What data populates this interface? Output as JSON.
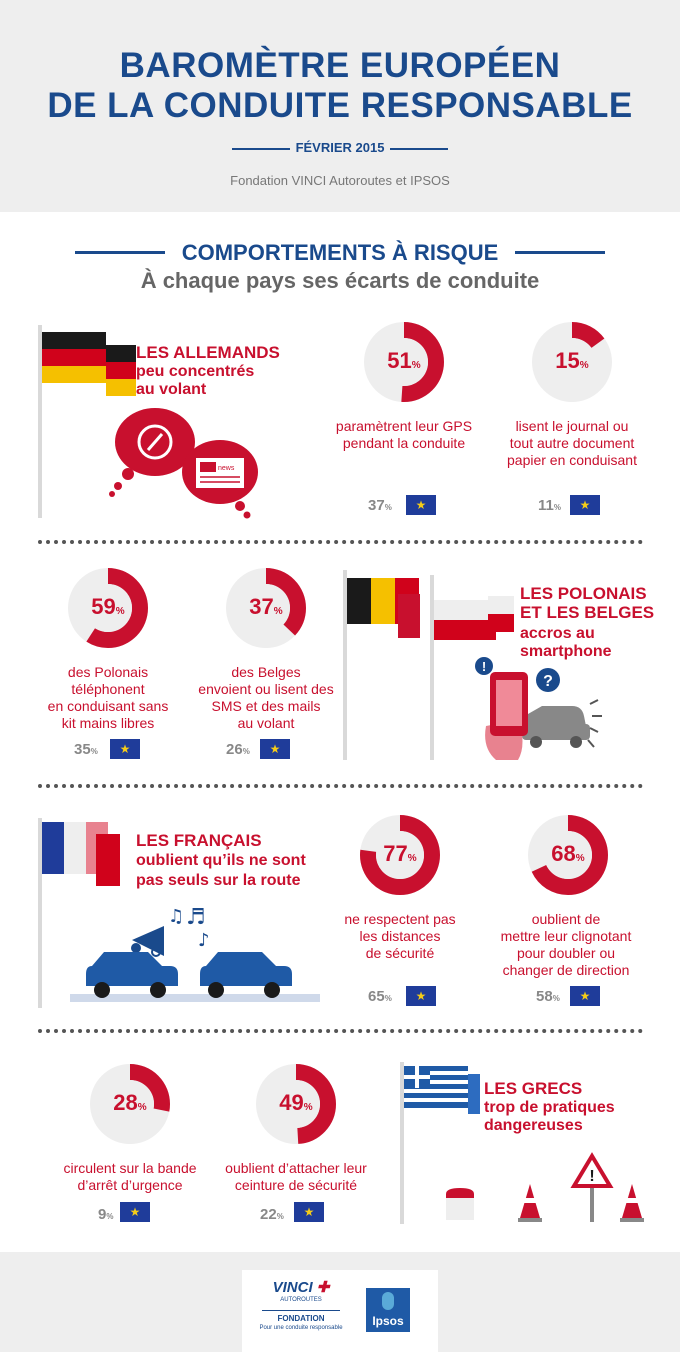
{
  "header": {
    "title_line1": "BAROMÈTRE EUROPÉEN",
    "title_line2": "DE LA CONDUITE RESPONSABLE",
    "date": "FÉVRIER 2015",
    "org": "Fondation VINCI Autoroutes et IPSOS"
  },
  "section": {
    "title": "COMPORTEMENTS À RISQUE",
    "subtitle": "À chaque pays ses écarts de conduite"
  },
  "pct_suffix": "%",
  "colors": {
    "accent": "#c8102e",
    "brand": "#1a4a8c",
    "eu": "#1f3c9a"
  },
  "germany": {
    "headline": "LES ALLEMANDS",
    "sub1": "peu concentrés",
    "sub2": "au volant",
    "news_label": "news",
    "stats": [
      {
        "value": "51",
        "percent": 51,
        "desc1": "paramètrent leur GPS",
        "desc2": "pendant la conduite",
        "desc3": "",
        "desc4": "",
        "eu": "37"
      },
      {
        "value": "15",
        "percent": 15,
        "desc1": "lisent le journal ou",
        "desc2": "tout autre document",
        "desc3": "papier en conduisant",
        "desc4": "",
        "eu": "11"
      }
    ]
  },
  "poland_belgium": {
    "headline1": "LES POLONAIS",
    "headline2": "ET LES BELGES",
    "sub1": "accros au",
    "sub2": "smartphone",
    "stats": [
      {
        "value": "59",
        "percent": 59,
        "desc1": "des Polonais",
        "desc2": "téléphonent",
        "desc3": "en conduisant sans",
        "desc4": "kit mains libres",
        "eu": "35"
      },
      {
        "value": "37",
        "percent": 37,
        "desc1": "des Belges",
        "desc2": "envoient ou lisent des",
        "desc3": "SMS et des mails",
        "desc4": "au volant",
        "eu": "26"
      }
    ]
  },
  "france": {
    "headline": "LES FRANÇAIS",
    "sub1": "oublient qu’ils ne sont",
    "sub2": "pas seuls sur la route",
    "stats": [
      {
        "value": "77",
        "percent": 77,
        "desc1": "ne respectent pas",
        "desc2": "les distances",
        "desc3": "de sécurité",
        "desc4": "",
        "eu": "65"
      },
      {
        "value": "68",
        "percent": 68,
        "desc1": "oublient de",
        "desc2": "mettre leur clignotant",
        "desc3": "pour doubler ou",
        "desc4": "changer de direction",
        "eu": "58"
      }
    ]
  },
  "greece": {
    "headline": "LES GRECS",
    "sub1": "trop de pratiques",
    "sub2": "dangereuses",
    "stats": [
      {
        "value": "28",
        "percent": 28,
        "desc1": "circulent sur la bande",
        "desc2": "d’arrêt d’urgence",
        "desc3": "",
        "desc4": "",
        "eu": "9"
      },
      {
        "value": "49",
        "percent": 49,
        "desc1": "oublient d’attacher leur",
        "desc2": "ceinture de sécurité",
        "desc3": "",
        "desc4": "",
        "eu": "22"
      }
    ]
  },
  "footer": {
    "vinci": "VINCI",
    "autoroutes": "AUTOROUTES",
    "fondation": "FONDATION",
    "tagline": "Pour une conduite responsable",
    "ipsos": "Ipsos"
  }
}
